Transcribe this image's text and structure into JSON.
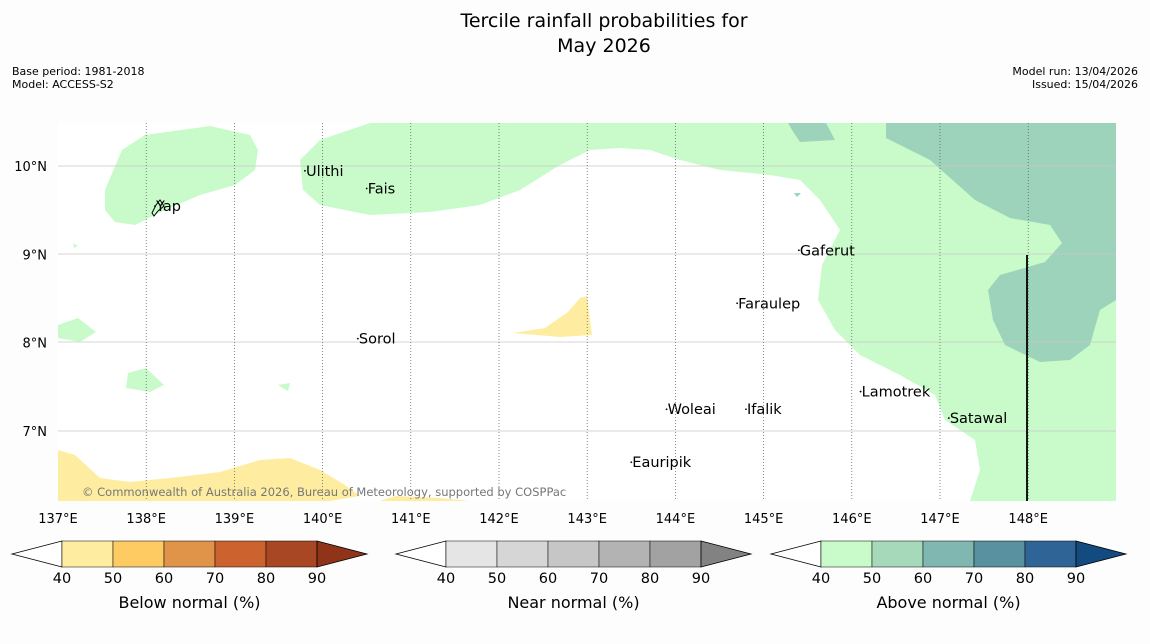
{
  "title_line1": "Tercile rainfall probabilities for",
  "title_line2": "May 2026",
  "meta_left": [
    "Base period: 1981-2018",
    "Model: ACCESS-S2"
  ],
  "meta_right": [
    "Model run: 13/04/2026",
    "Issued: 15/04/2026"
  ],
  "copyright": "© Commonwealth of Australia 2026, Bureau of Meteorology, supported by COSPPac",
  "map": {
    "lon_range": [
      137,
      149
    ],
    "lat_range": [
      6.2,
      10.5
    ],
    "lon_ticks": [
      "137°E",
      "138°E",
      "139°E",
      "140°E",
      "141°E",
      "142°E",
      "143°E",
      "144°E",
      "145°E",
      "146°E",
      "147°E",
      "148°E"
    ],
    "lat_ticks": [
      "10°N",
      "9°N",
      "8°N",
      "7°N"
    ],
    "places": [
      {
        "name": "Ulithi",
        "lon": 139.8,
        "lat": 9.9
      },
      {
        "name": "Fais",
        "lon": 140.5,
        "lat": 9.7
      },
      {
        "name": "Yap",
        "lon": 138.1,
        "lat": 9.5
      },
      {
        "name": "Gaferut",
        "lon": 145.4,
        "lat": 9.0
      },
      {
        "name": "Faraulep",
        "lon": 144.7,
        "lat": 8.4
      },
      {
        "name": "Sorol",
        "lon": 140.4,
        "lat": 8.0
      },
      {
        "name": "Woleai",
        "lon": 143.9,
        "lat": 7.2
      },
      {
        "name": "Ifalik",
        "lon": 144.8,
        "lat": 7.2
      },
      {
        "name": "Lamotrek",
        "lon": 146.1,
        "lat": 7.4
      },
      {
        "name": "Satawal",
        "lon": 147.1,
        "lat": 7.1
      },
      {
        "name": "Eauripik",
        "lon": 143.5,
        "lat": 6.6
      }
    ]
  },
  "colorbars": [
    {
      "label": "Below normal (%)",
      "ticks": [
        "40",
        "50",
        "60",
        "70",
        "80",
        "90"
      ],
      "colors": [
        "#ffffff",
        "#feeda0",
        "#feca62",
        "#e0944a",
        "#cc622e",
        "#a84724",
        "#903419"
      ]
    },
    {
      "label": "Near normal (%)",
      "ticks": [
        "40",
        "50",
        "60",
        "70",
        "80",
        "90"
      ],
      "colors": [
        "#ffffff",
        "#e5e5e5",
        "#d6d6d6",
        "#c6c6c6",
        "#b3b3b3",
        "#a2a2a2",
        "#828282"
      ]
    },
    {
      "label": "Above normal (%)",
      "ticks": [
        "40",
        "50",
        "60",
        "70",
        "80",
        "90"
      ],
      "colors": [
        "#ffffff",
        "#c8fbc9",
        "#a6d9b9",
        "#80b7b0",
        "#5a91a0",
        "#2f6596",
        "#134b80"
      ]
    }
  ]
}
